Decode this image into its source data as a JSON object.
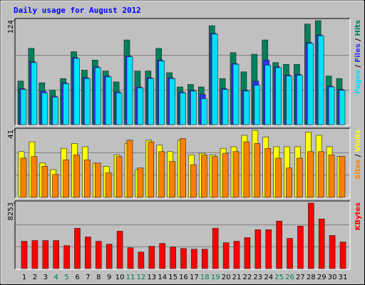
{
  "chart_data": [
    {
      "type": "bar",
      "title": "Daily usage for August 2012",
      "ylim": [
        0,
        124
      ],
      "yticks": [
        124
      ],
      "series": [
        {
          "name": "Hits",
          "color": "#00805c",
          "values": [
            52,
            91,
            50,
            41,
            55,
            87,
            65,
            77,
            64,
            51,
            101,
            64,
            64,
            91,
            62,
            45,
            48,
            45,
            118,
            55,
            86,
            63,
            84,
            101,
            74,
            72,
            72,
            120,
            124,
            58,
            55
          ]
        },
        {
          "name": "Files",
          "color": "#3030ff",
          "values": [
            43,
            75,
            40,
            34,
            50,
            80,
            56,
            69,
            58,
            39,
            82,
            45,
            56,
            77,
            56,
            39,
            41,
            36,
            109,
            43,
            73,
            41,
            52,
            77,
            69,
            59,
            60,
            98,
            107,
            46,
            42
          ]
        },
        {
          "name": "Pages",
          "color": "#00e0ff",
          "values": [
            42,
            74,
            38,
            33,
            49,
            79,
            55,
            68,
            57,
            38,
            81,
            44,
            55,
            76,
            55,
            38,
            40,
            31,
            108,
            42,
            72,
            40,
            47,
            71,
            68,
            58,
            59,
            97,
            106,
            45,
            41
          ]
        }
      ]
    },
    {
      "type": "bar",
      "ylim": [
        0,
        41
      ],
      "yticks": [
        41
      ],
      "series": [
        {
          "name": "Visits",
          "color": "#ffff00",
          "values": [
            28,
            34,
            21,
            17,
            30,
            33,
            31,
            21,
            19,
            26,
            33,
            17,
            35,
            32,
            28,
            35,
            26,
            27,
            26,
            30,
            31,
            38,
            41,
            37,
            31,
            31,
            31,
            40,
            38,
            31,
            25
          ]
        },
        {
          "name": "Sites",
          "color": "#ff8000",
          "values": [
            24,
            25,
            19,
            14,
            23,
            26,
            23,
            21,
            15,
            25,
            35,
            18,
            34,
            28,
            22,
            36,
            20,
            26,
            25,
            27,
            28,
            34,
            33,
            30,
            24,
            18,
            24,
            28,
            28,
            26,
            25
          ]
        }
      ]
    },
    {
      "type": "bar",
      "ylim": [
        0,
        8253
      ],
      "yticks": [
        8253
      ],
      "categories": [
        "1",
        "2",
        "3",
        "4",
        "5",
        "6",
        "7",
        "8",
        "9",
        "10",
        "11",
        "12",
        "13",
        "14",
        "15",
        "16",
        "17",
        "18",
        "19",
        "20",
        "21",
        "22",
        "23",
        "24",
        "25",
        "26",
        "27",
        "28",
        "29",
        "30",
        "31"
      ],
      "weekend": [
        3,
        4,
        10,
        11,
        17,
        18,
        24,
        25
      ],
      "weekend_color": "#00805c",
      "series": [
        {
          "name": "KBytes",
          "color": "#ff0000",
          "values": [
            3447,
            3537,
            3537,
            3537,
            2902,
            5079,
            3991,
            3447,
            3084,
            4716,
            2630,
            2086,
            2812,
            3175,
            2721,
            2540,
            2449,
            2449,
            5079,
            3265,
            3447,
            3900,
            4898,
            4898,
            5986,
            3810,
            5351,
            8253,
            6258,
            4172,
            3356
          ]
        }
      ]
    }
  ]
}
